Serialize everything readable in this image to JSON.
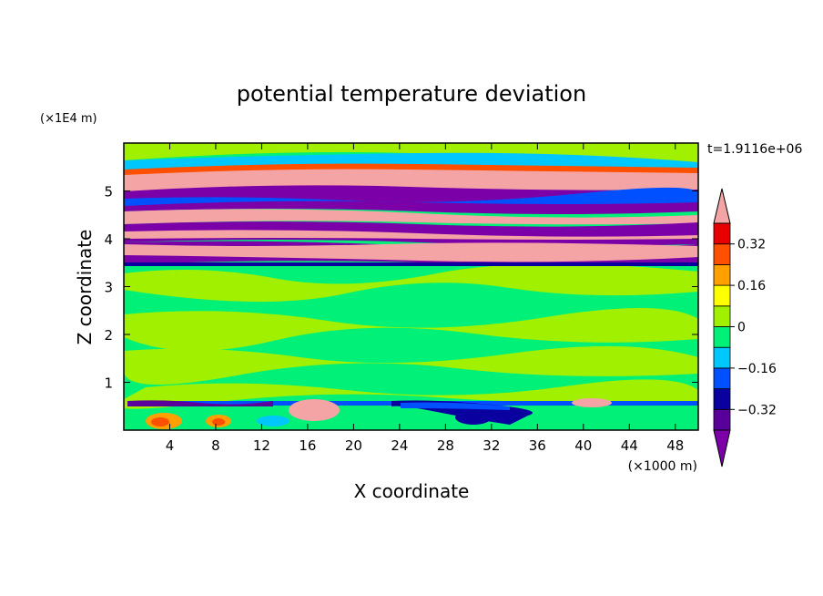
{
  "chart_data": {
    "type": "heatmap",
    "title": "potential temperature deviation",
    "xlabel": "X coordinate",
    "ylabel": "Z coordinate",
    "x_unit": "(×1000 m)",
    "y_unit": "(×1E4 m)",
    "time_label": "t=1.9116e+06",
    "xlim": [
      0,
      50
    ],
    "ylim": [
      0,
      6
    ],
    "x_ticks": [
      4,
      8,
      12,
      16,
      20,
      24,
      28,
      32,
      36,
      40,
      44,
      48
    ],
    "y_ticks": [
      1,
      2,
      3,
      4,
      5
    ],
    "colorbar": {
      "levels": [
        -0.4,
        -0.32,
        -0.24,
        -0.16,
        -0.08,
        0,
        0.08,
        0.16,
        0.24,
        0.32,
        0.4
      ],
      "colors": [
        "#7b00a8",
        "#5a009a",
        "#0a00a0",
        "#0050ff",
        "#00c8ff",
        "#00f078",
        "#a0f000",
        "#ffff00",
        "#ffa000",
        "#ff5000",
        "#e80000",
        "#f4a4a4"
      ],
      "tick_labels": [
        "0.32",
        "0.16",
        "0",
        "−0.16",
        "−0.32"
      ],
      "tick_values": [
        0.32,
        0.16,
        0,
        -0.16,
        -0.32
      ]
    },
    "layers": [
      {
        "zmin": 0.0,
        "zmax": 0.6,
        "note": "mixed warm/cold patches near surface"
      },
      {
        "zmin": 0.6,
        "zmax": 3.4,
        "value_range": [
          -0.08,
          0.08
        ]
      },
      {
        "zmin": 3.45,
        "zmax": 3.8,
        "value": 0.4
      },
      {
        "zmin": 3.8,
        "zmax": 4.1,
        "value": -0.4
      },
      {
        "zmin": 4.1,
        "zmax": 4.45,
        "value": 0.4
      },
      {
        "zmin": 4.45,
        "zmax": 4.75,
        "value": -0.4
      },
      {
        "zmin": 4.75,
        "zmax": 5.0,
        "value": -0.4
      },
      {
        "zmin": 5.0,
        "zmax": 5.3,
        "value": 0.4
      },
      {
        "zmin": 5.3,
        "zmax": 6.0,
        "value_range": [
          -0.08,
          0.08
        ]
      }
    ]
  }
}
